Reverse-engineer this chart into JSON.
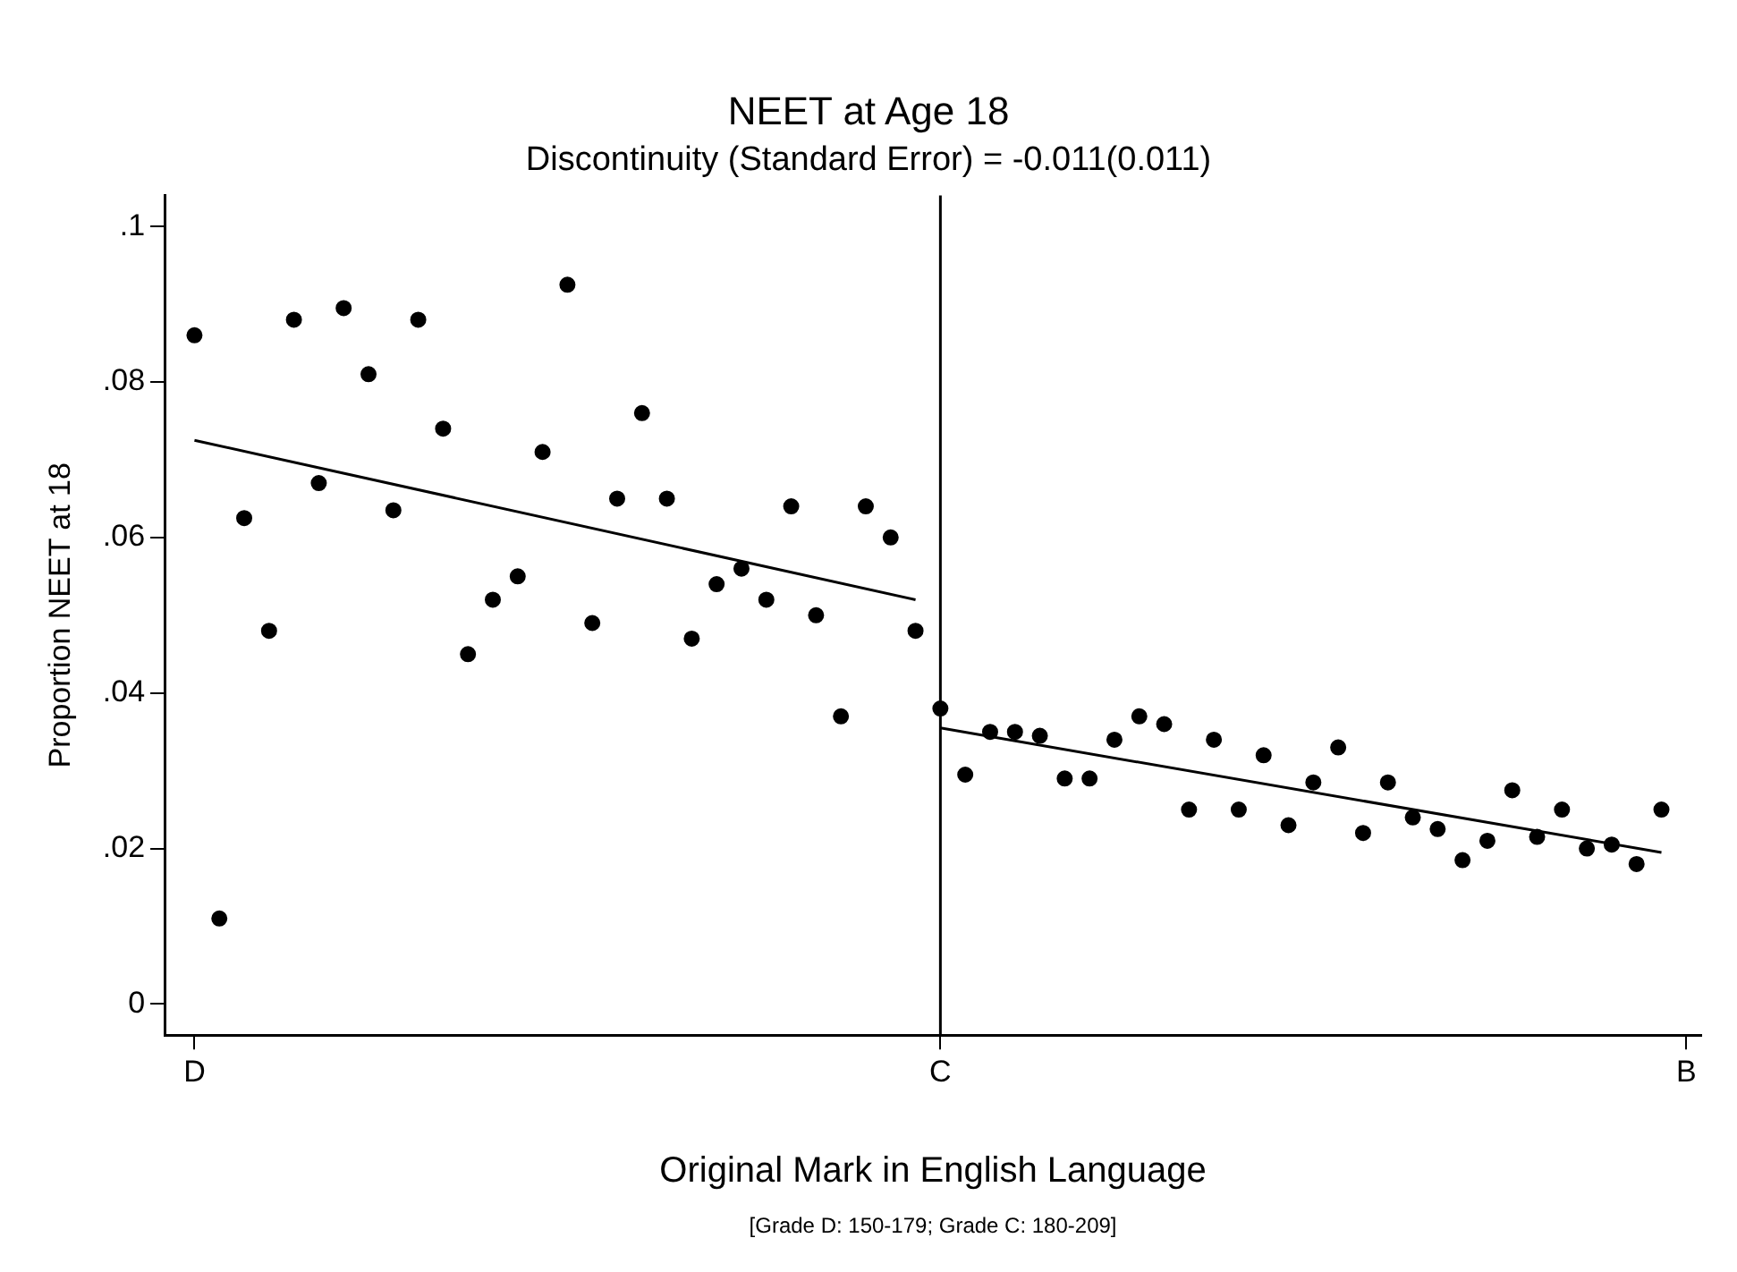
{
  "chart_data": {
    "type": "scatter",
    "title": "NEET at Age 18",
    "subtitle": "Discontinuity (Standard Error) = -0.011(0.011)",
    "xlabel": "Original Mark in English Language",
    "ylabel": "Proportion NEET at 18",
    "annotations": [
      "[Grade D: 150-179; Grade C: 180-209]"
    ],
    "categories": [
      "D",
      null,
      null,
      null,
      null,
      null,
      null,
      null,
      null,
      null,
      null,
      null,
      null,
      null,
      null,
      null,
      null,
      null,
      null,
      null,
      null,
      null,
      null,
      null,
      null,
      null,
      null,
      null,
      null,
      null,
      "C",
      null,
      null,
      null,
      null,
      null,
      null,
      null,
      null,
      null,
      null,
      null,
      null,
      null,
      null,
      null,
      null,
      null,
      null,
      null,
      null,
      null,
      null,
      null,
      null,
      null,
      null,
      null,
      null,
      null,
      "B"
    ],
    "ylim": [
      -0.004,
      0.104
    ],
    "yticks": [
      0,
      {
        "value": 0.02,
        "label": ".02"
      },
      {
        "value": 0.04,
        "label": ".04"
      },
      {
        "value": 0.06,
        "label": ".06"
      },
      {
        "value": 0.08,
        "label": ".08"
      },
      {
        "value": 0.1,
        "label": ".1"
      }
    ],
    "series": [
      {
        "color": "#000000",
        "marker": "circle",
        "values": [
          0.086,
          0.011,
          0.0625,
          0.048,
          0.088,
          0.067,
          0.0895,
          0.081,
          0.0635,
          0.088,
          0.074,
          0.045,
          0.052,
          0.055,
          0.071,
          0.0925,
          0.049,
          0.065,
          0.076,
          0.065,
          0.047,
          0.054,
          0.056,
          0.052,
          0.064,
          0.05,
          0.037,
          0.064,
          0.06,
          0.048,
          0.038,
          0.0295,
          0.035,
          0.035,
          0.0345,
          0.029,
          0.029,
          0.034,
          0.037,
          0.036,
          0.025,
          0.034,
          0.025,
          0.032,
          0.023,
          0.0285,
          0.033,
          0.022,
          0.0285,
          0.024,
          0.0225,
          0.0185,
          0.021,
          0.0275,
          0.0215,
          0.025,
          0.02,
          0.0205,
          0.018,
          0.025,
          null
        ]
      },
      {
        "type": "line",
        "marker": "none",
        "color": "#000000",
        "values": [
          0.0725,
          null,
          null,
          null,
          null,
          null,
          null,
          null,
          null,
          null,
          null,
          null,
          null,
          null,
          null,
          null,
          null,
          null,
          null,
          null,
          null,
          null,
          null,
          null,
          null,
          null,
          null,
          null,
          null,
          0.052,
          null,
          null,
          null,
          null,
          null,
          null,
          null,
          null,
          null,
          null,
          null,
          null,
          null,
          null,
          null,
          null,
          null,
          null,
          null,
          null,
          null,
          null,
          null,
          null,
          null,
          null,
          null,
          null,
          null,
          null,
          null
        ]
      },
      {
        "type": "line",
        "marker": "none",
        "color": "#000000",
        "values": [
          null,
          null,
          null,
          null,
          null,
          null,
          null,
          null,
          null,
          null,
          null,
          null,
          null,
          null,
          null,
          null,
          null,
          null,
          null,
          null,
          null,
          null,
          null,
          null,
          null,
          null,
          null,
          null,
          null,
          null,
          0.0355,
          null,
          null,
          null,
          null,
          null,
          null,
          null,
          null,
          null,
          null,
          null,
          null,
          null,
          null,
          null,
          null,
          null,
          null,
          null,
          null,
          null,
          null,
          null,
          null,
          null,
          null,
          null,
          null,
          0.0195,
          null
        ]
      }
    ],
    "ref_lines": [
      {
        "axis": "x",
        "value": "C",
        "color": "#000000"
      }
    ],
    "grid": false,
    "legend": false
  }
}
